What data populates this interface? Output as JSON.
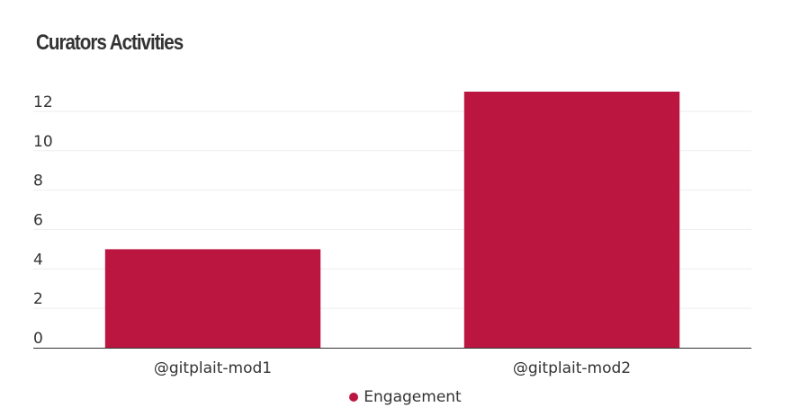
{
  "chart_data": {
    "type": "bar",
    "title": "Curators Activities",
    "categories": [
      "@gitplait-mod1",
      "@gitplait-mod2"
    ],
    "series": [
      {
        "name": "Engagement",
        "values": [
          5,
          13
        ],
        "color": "#bb1640"
      }
    ],
    "yticks": [
      0,
      2,
      4,
      6,
      8,
      10,
      12
    ],
    "ylim": [
      0,
      13
    ],
    "grid": true,
    "legend_position": "bottom-center"
  }
}
